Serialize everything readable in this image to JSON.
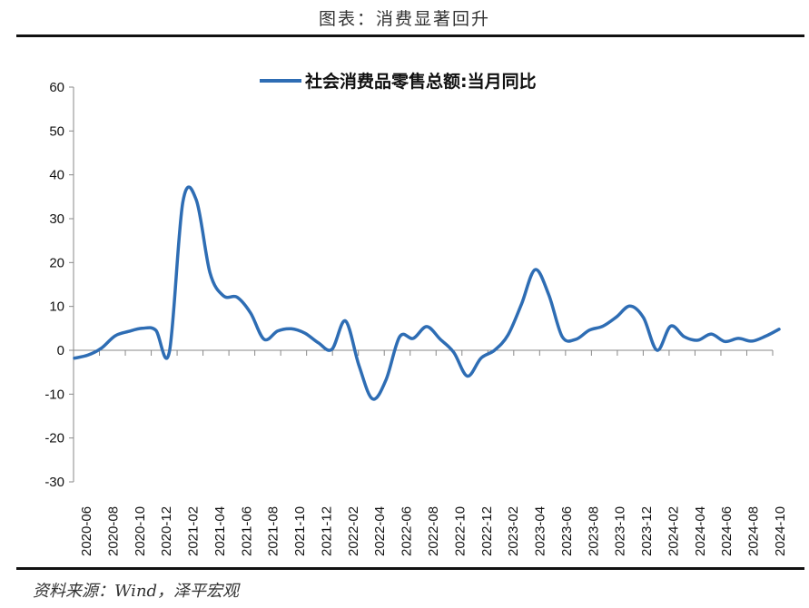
{
  "figure": {
    "title": "图表：消费显著回升",
    "source": "资料来源：Wind，泽平宏观"
  },
  "chart_data": {
    "type": "line",
    "title": "",
    "xlabel": "",
    "ylabel": "",
    "ylim": [
      -30,
      60
    ],
    "yticks": [
      60,
      50,
      40,
      30,
      20,
      10,
      0,
      -10,
      -20,
      -30
    ],
    "legend": "top",
    "grid": false,
    "series_color": "#2e6db4",
    "x_tick_labels": [
      "2020-06",
      "2020-08",
      "2020-10",
      "2020-12",
      "2021-02",
      "2021-04",
      "2021-06",
      "2021-08",
      "2021-10",
      "2021-12",
      "2022-02",
      "2022-04",
      "2022-06",
      "2022-08",
      "2022-10",
      "2022-12",
      "2023-02",
      "2023-04",
      "2023-06",
      "2023-08",
      "2023-10",
      "2023-12",
      "2024-02",
      "2024-04",
      "2024-06",
      "2024-08",
      "2024-10"
    ],
    "x": [
      "2020-06",
      "2020-07",
      "2020-08",
      "2020-09",
      "2020-10",
      "2020-11",
      "2020-12",
      "2021-01",
      "2021-02",
      "2021-03",
      "2021-04",
      "2021-05",
      "2021-06",
      "2021-07",
      "2021-08",
      "2021-09",
      "2021-10",
      "2021-11",
      "2021-12",
      "2022-01",
      "2022-02",
      "2022-03",
      "2022-04",
      "2022-05",
      "2022-06",
      "2022-07",
      "2022-08",
      "2022-09",
      "2022-10",
      "2022-11",
      "2022-12",
      "2023-01",
      "2023-02",
      "2023-03",
      "2023-04",
      "2023-05",
      "2023-06",
      "2023-07",
      "2023-08",
      "2023-09",
      "2023-10",
      "2023-11",
      "2023-12",
      "2024-01",
      "2024-02",
      "2024-03",
      "2024-04",
      "2024-05",
      "2024-06",
      "2024-07",
      "2024-08",
      "2024-09",
      "2024-10"
    ],
    "series": [
      {
        "name": "社会消费品零售总额:当月同比",
        "values": [
          -1.8,
          -1.1,
          0.5,
          3.3,
          4.3,
          5.0,
          4.6,
          -0.4,
          33.8,
          34.2,
          17.7,
          12.4,
          12.1,
          8.5,
          2.5,
          4.4,
          4.9,
          3.9,
          1.7,
          0.2,
          6.7,
          -3.5,
          -11.1,
          -6.7,
          3.1,
          2.7,
          5.4,
          2.5,
          -0.5,
          -5.9,
          -1.8,
          0.0,
          3.5,
          10.6,
          18.4,
          12.7,
          3.1,
          2.5,
          4.6,
          5.5,
          7.6,
          10.1,
          7.4,
          0.0,
          5.5,
          3.1,
          2.3,
          3.7,
          2.0,
          2.7,
          2.1,
          3.2,
          4.8
        ]
      }
    ]
  }
}
